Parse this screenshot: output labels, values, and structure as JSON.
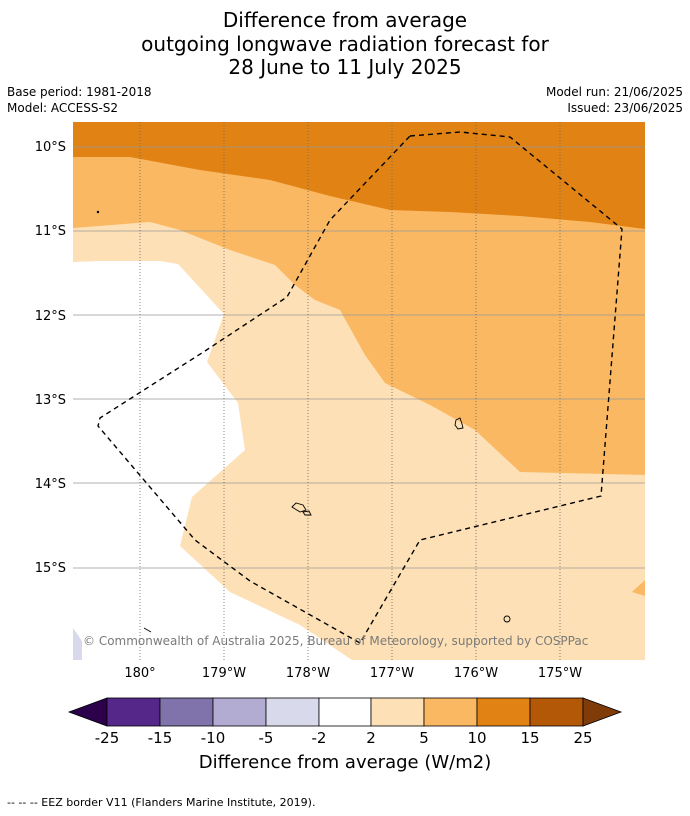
{
  "title": {
    "line1": "Difference from average",
    "line2": "outgoing longwave radiation forecast for",
    "line3": "28 June to 11 July 2025"
  },
  "meta": {
    "base_period": "Base period: 1981-2018",
    "model": "Model: ACCESS-S2",
    "model_run": "Model run: 21/06/2025",
    "issued": "Issued: 23/06/2025"
  },
  "map": {
    "lat_labels": [
      "10°S",
      "11°S",
      "12°S",
      "13°S",
      "14°S",
      "15°S"
    ],
    "lon_labels": [
      "180°",
      "179°W",
      "178°W",
      "177°W",
      "176°W",
      "175°W"
    ],
    "copyright": "© Commonwealth of Australia 2025, Bureau of Meteorology, supported by COSPPac",
    "colors": {
      "band_2_5": "#fde0b5",
      "band_5_10": "#fbb862",
      "band_10_15": "#e08214",
      "band_15_25": "#b35806",
      "neutral": "#ffffff",
      "neg_2_5": "#d8daeb"
    }
  },
  "colorbar": {
    "ticks": [
      "-25",
      "-15",
      "-10",
      "-5",
      "-2",
      "2",
      "5",
      "10",
      "15",
      "25"
    ],
    "colors": [
      "#2d004b",
      "#542788",
      "#8073ac",
      "#b2abd2",
      "#d8daeb",
      "#ffffff",
      "#fde0b5",
      "#fbb862",
      "#e08214",
      "#b35806",
      "#7f3b08"
    ],
    "title": "Difference from average (W/m2)"
  },
  "footer": "--  --  -- EEZ border V11 (Flanders Marine Institute, 2019)."
}
